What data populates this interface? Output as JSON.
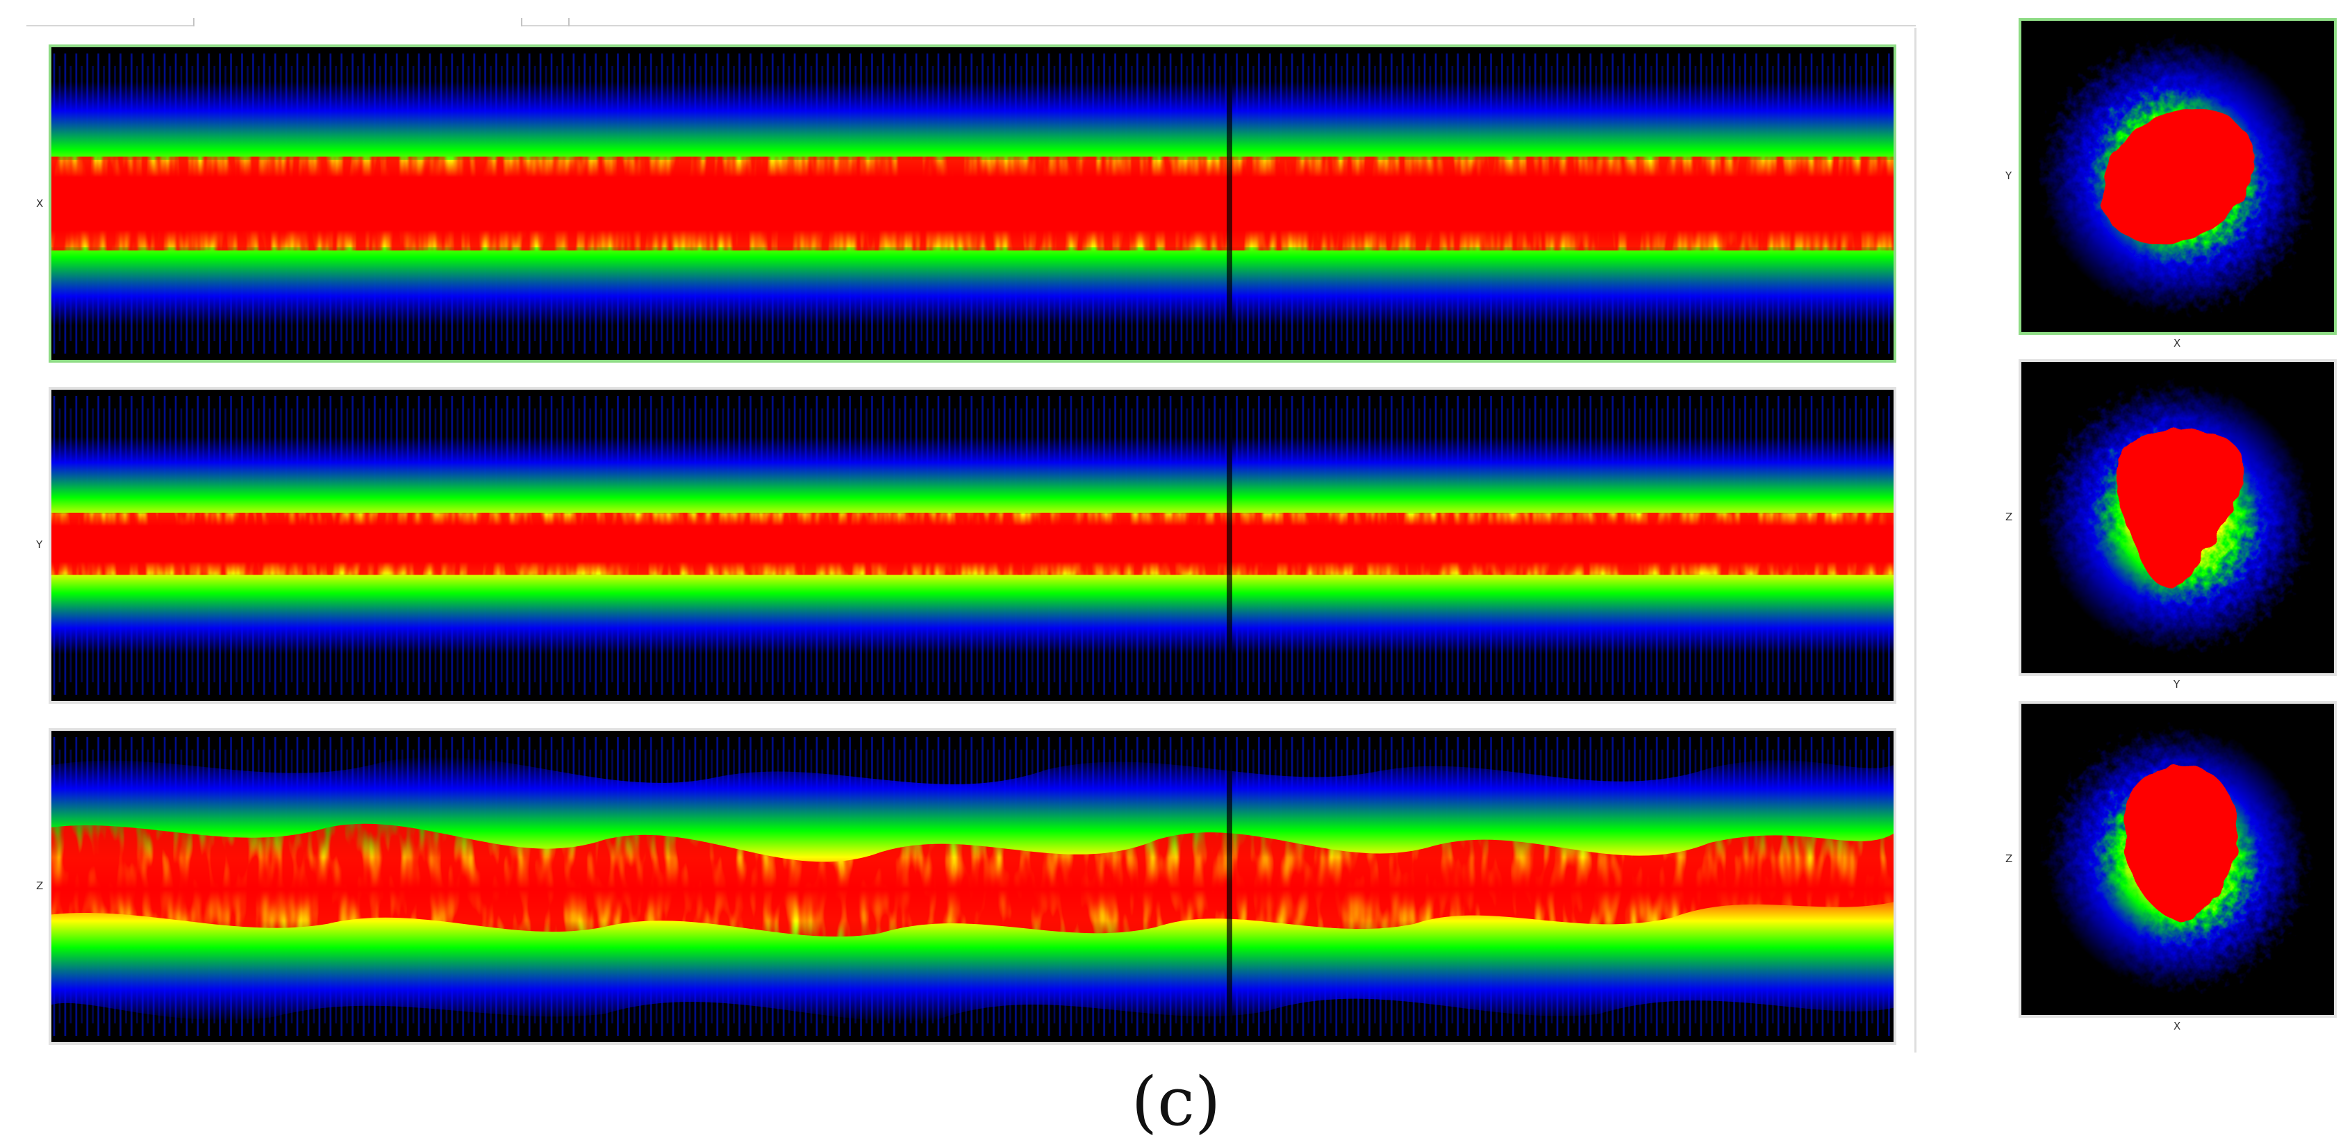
{
  "views": {
    "time_series": [
      {
        "id": "x",
        "axis_label": "X",
        "selected": true
      },
      {
        "id": "y",
        "axis_label": "Y",
        "selected": false
      },
      {
        "id": "z",
        "axis_label": "Z",
        "selected": false
      }
    ],
    "projections": [
      {
        "id": "xy",
        "vertical_label": "Y",
        "horizontal_label": "X",
        "selected": true
      },
      {
        "id": "yz",
        "vertical_label": "Z",
        "horizontal_label": "Y",
        "selected": false
      },
      {
        "id": "xz",
        "vertical_label": "Z",
        "horizontal_label": "X",
        "selected": false
      }
    ]
  },
  "caption": "(c)",
  "colors": {
    "background": "#000000",
    "low_density": "#0000ff",
    "mid_density": "#00ff00",
    "high_density": "#ffff00",
    "peak_density": "#ff0000",
    "selected_border": "#8fdc86"
  }
}
